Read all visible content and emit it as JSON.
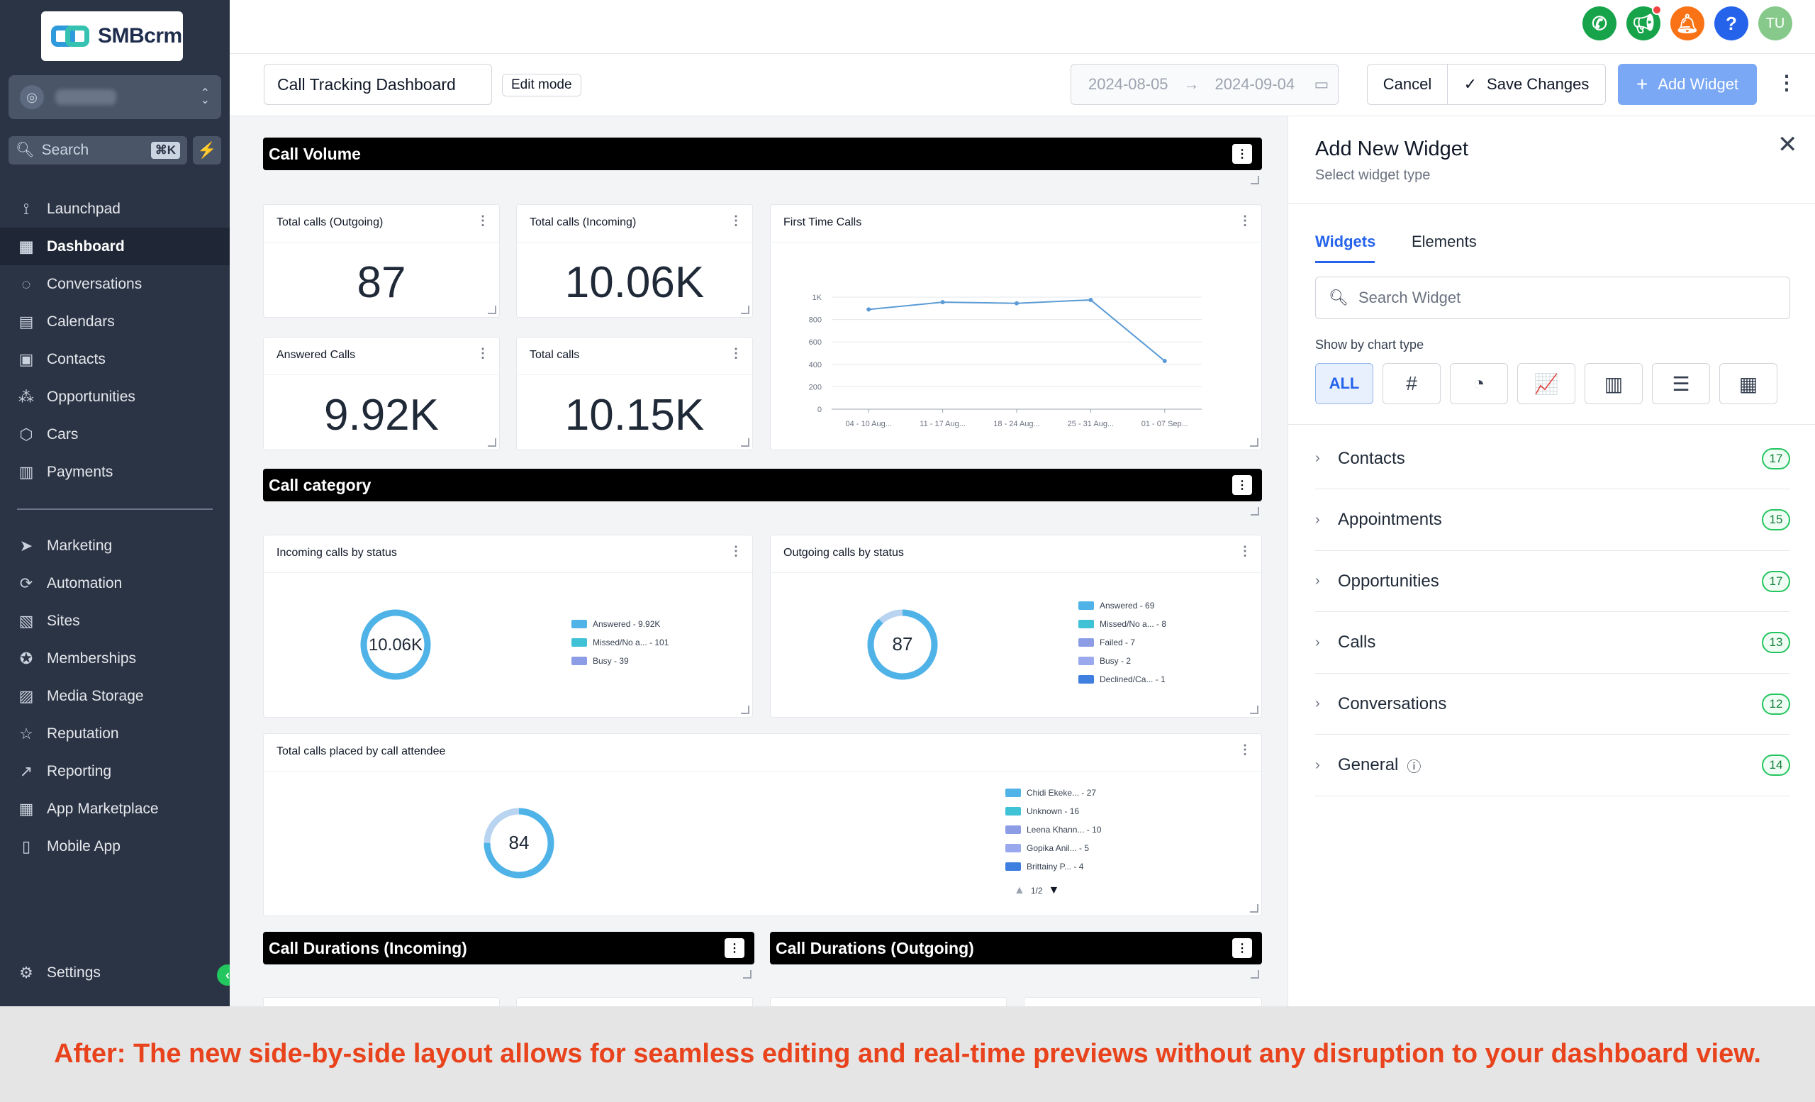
{
  "app": {
    "logo_text": "SMBcrm"
  },
  "sidebar": {
    "search_placeholder": "Search",
    "search_shortcut": "⌘K",
    "items": [
      {
        "label": "Launchpad",
        "icon": "rocket-icon"
      },
      {
        "label": "Dashboard",
        "icon": "grid-icon",
        "active": true
      },
      {
        "label": "Conversations",
        "icon": "chat-icon"
      },
      {
        "label": "Calendars",
        "icon": "calendar-icon"
      },
      {
        "label": "Contacts",
        "icon": "contacts-icon"
      },
      {
        "label": "Opportunities",
        "icon": "opportunities-icon"
      },
      {
        "label": "Cars",
        "icon": "box-icon"
      },
      {
        "label": "Payments",
        "icon": "receipt-icon"
      },
      {
        "label": "Marketing",
        "icon": "send-icon"
      },
      {
        "label": "Automation",
        "icon": "automation-icon"
      },
      {
        "label": "Sites",
        "icon": "sites-icon"
      },
      {
        "label": "Memberships",
        "icon": "award-icon"
      },
      {
        "label": "Media Storage",
        "icon": "image-icon"
      },
      {
        "label": "Reputation",
        "icon": "star-icon"
      },
      {
        "label": "Reporting",
        "icon": "trending-icon"
      },
      {
        "label": "App Marketplace",
        "icon": "apps-icon"
      },
      {
        "label": "Mobile App",
        "icon": "phone-icon"
      }
    ],
    "settings_label": "Settings"
  },
  "topbar": {
    "avatar_initials": "TU"
  },
  "editor": {
    "dashboard_name": "Call Tracking Dashboard",
    "mode_badge": "Edit mode",
    "date_start": "2024-08-05",
    "date_end": "2024-09-04",
    "cancel_label": "Cancel",
    "save_label": "Save Changes",
    "add_widget_label": "Add Widget"
  },
  "sections": {
    "call_volume": "Call Volume",
    "call_category": "Call category",
    "dur_in": "Call Durations (Incoming)",
    "dur_out": "Call Durations (Outgoing)"
  },
  "stats": [
    {
      "title": "Total calls (Outgoing)",
      "value": "87"
    },
    {
      "title": "Total calls (Incoming)",
      "value": "10.06K"
    },
    {
      "title": "Answered Calls",
      "value": "9.92K"
    },
    {
      "title": "Total calls",
      "value": "10.15K"
    }
  ],
  "first_time_calls": {
    "title": "First Time Calls",
    "chart_data": {
      "type": "line",
      "categories": [
        "04 - 10 Aug...",
        "11 - 17 Aug...",
        "18 - 24 Aug...",
        "25 - 31 Aug...",
        "01 - 07 Sep..."
      ],
      "values": [
        890,
        955,
        945,
        975,
        430
      ],
      "yticks": [
        "0",
        "200",
        "400",
        "600",
        "800",
        "1K"
      ],
      "ylim": [
        0,
        1000
      ],
      "color": "#5b9bd5"
    }
  },
  "donuts": {
    "incoming": {
      "title": "Incoming calls by status",
      "center": "10.06K",
      "legend": [
        "Answered - 9.92K",
        "Missed/No a... - 101",
        "Busy - 39"
      ],
      "colors": [
        "#4fb3e8",
        "#3fc1d6",
        "#8c9de6"
      ]
    },
    "outgoing": {
      "title": "Outgoing calls by status",
      "center": "87",
      "legend": [
        "Answered - 69",
        "Missed/No a... - 8",
        "Failed - 7",
        "Busy - 2",
        "Declined/Ca... - 1"
      ],
      "colors": [
        "#4fb3e8",
        "#3fc1d6",
        "#8c9de6",
        "#9aa8ee",
        "#3f7fe0"
      ]
    },
    "attendee": {
      "title": "Total calls placed by call attendee",
      "center": "84",
      "legend": [
        "Chidi Ekeke... - 27",
        "Unknown - 16",
        "Leena Khann... - 10",
        "Gopika Anil... - 5",
        "Brittainy P... - 4"
      ],
      "colors": [
        "#4fb3e8",
        "#3fc1d6",
        "#8c9de6",
        "#9aa8ee",
        "#3f7fe0"
      ],
      "pager": "1/2"
    }
  },
  "panel": {
    "title": "Add New Widget",
    "subtitle": "Select widget type",
    "tabs": [
      "Widgets",
      "Elements"
    ],
    "search_placeholder": "Search Widget",
    "chart_type_label": "Show by chart type",
    "chart_types": [
      {
        "label": "ALL"
      },
      {
        "icon": "hash-icon",
        "glyph": "#"
      },
      {
        "icon": "pie-chart-icon",
        "glyph": "◔"
      },
      {
        "icon": "line-chart-icon",
        "glyph": "📈"
      },
      {
        "icon": "bar-chart-icon",
        "glyph": "▥"
      },
      {
        "icon": "horizontal-bar-icon",
        "glyph": "☰"
      },
      {
        "icon": "table-icon",
        "glyph": "▦"
      }
    ],
    "categories": [
      {
        "label": "Contacts",
        "count": "17"
      },
      {
        "label": "Appointments",
        "count": "15"
      },
      {
        "label": "Opportunities",
        "count": "17"
      },
      {
        "label": "Calls",
        "count": "13"
      },
      {
        "label": "Conversations",
        "count": "12"
      },
      {
        "label": "General",
        "count": "14"
      }
    ]
  },
  "banner": {
    "text": "After: The new side-by-side layout allows for seamless editing and real-time previews without any disruption to your dashboard view."
  }
}
